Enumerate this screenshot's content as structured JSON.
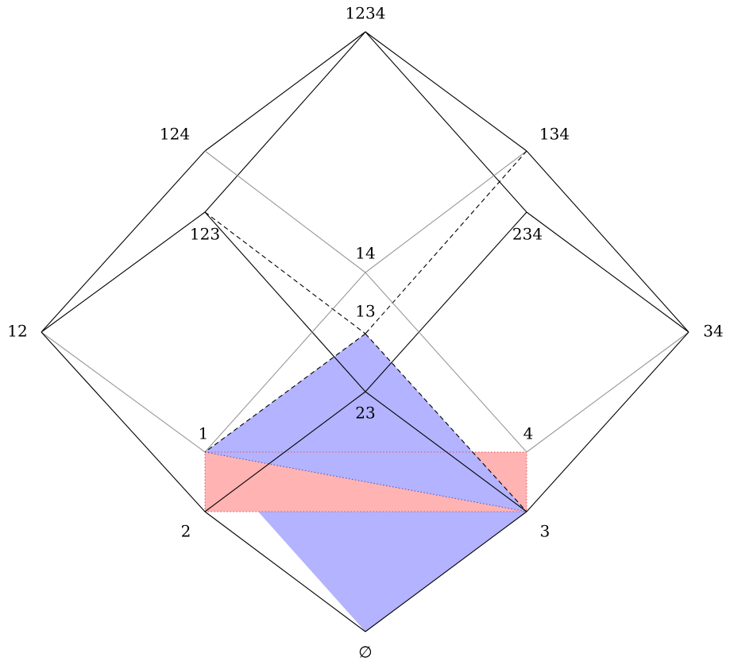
{
  "nodes": [
    {
      "label": "1234"
    },
    {
      "label": "124"
    },
    {
      "label": "134"
    },
    {
      "label": "123"
    },
    {
      "label": "234"
    },
    {
      "label": "14"
    },
    {
      "label": "13"
    },
    {
      "label": "12"
    },
    {
      "label": "34"
    },
    {
      "label": "23"
    },
    {
      "label": "1"
    },
    {
      "label": "4"
    },
    {
      "label": "2"
    },
    {
      "label": "3"
    },
    {
      "label": "∅"
    }
  ]
}
